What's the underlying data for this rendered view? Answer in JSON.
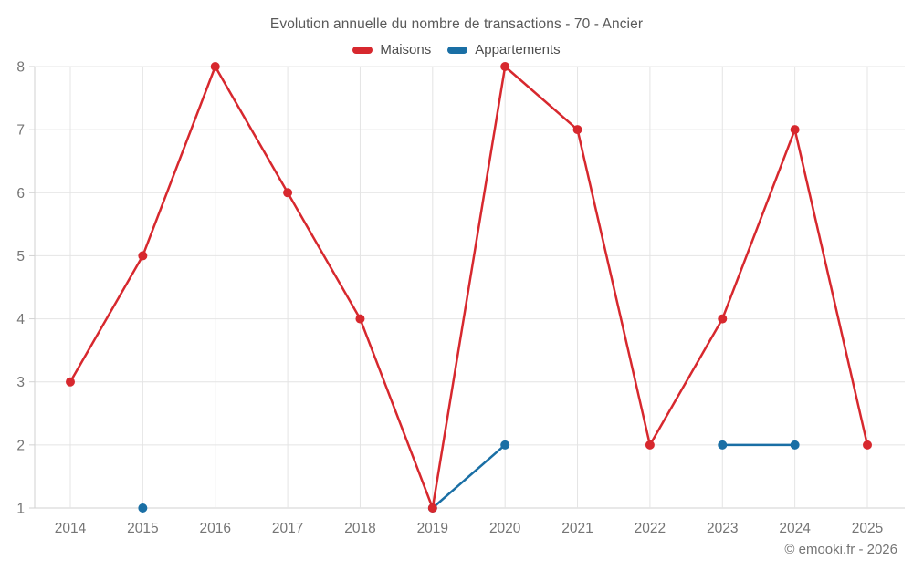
{
  "header": {
    "title": "Evolution annuelle du nombre de transactions - 70 - Ancier"
  },
  "footer": {
    "credit": "© emooki.fr - 2026"
  },
  "colors": {
    "maisons": "#d7282e",
    "appartements": "#1a6fa5",
    "grid": "#e4e4e4",
    "axis": "#d2d2d2",
    "tick_label": "#757575",
    "title_text": "#595959",
    "background": "#ffffff"
  },
  "chart_data": {
    "type": "line",
    "title": "Evolution annuelle du nombre de transactions - 70 - Ancier",
    "categories": [
      "2014",
      "2015",
      "2016",
      "2017",
      "2018",
      "2019",
      "2020",
      "2021",
      "2022",
      "2023",
      "2024",
      "2025"
    ],
    "series": [
      {
        "name": "Maisons",
        "color": "#d7282e",
        "values": [
          3,
          5,
          8,
          6,
          4,
          1,
          8,
          7,
          2,
          4,
          7,
          2
        ]
      },
      {
        "name": "Appartements",
        "color": "#1a6fa5",
        "values": [
          null,
          1,
          null,
          null,
          null,
          1,
          2,
          null,
          null,
          2,
          2,
          null
        ]
      }
    ],
    "xlabel": "",
    "ylabel": "",
    "ylim": [
      1,
      8
    ],
    "yticks": [
      1,
      2,
      3,
      4,
      5,
      6,
      7,
      8
    ],
    "grid": true,
    "legend_position": "top",
    "marker": "circle"
  }
}
